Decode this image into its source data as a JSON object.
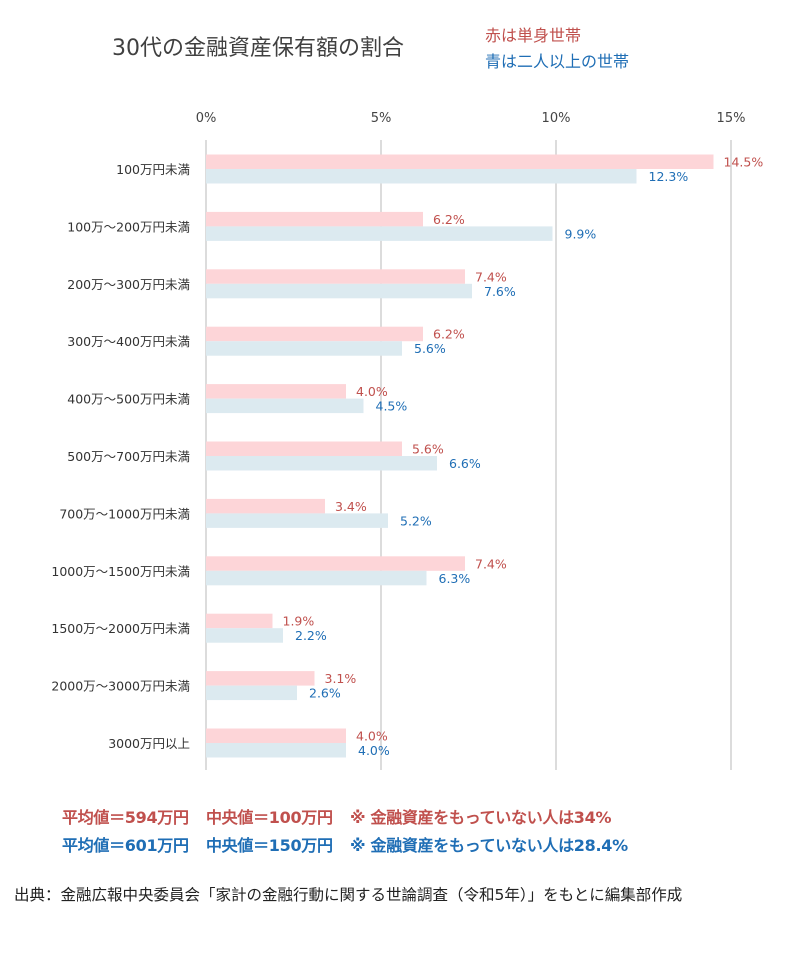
{
  "chart_data": {
    "type": "bar",
    "orientation": "horizontal",
    "title": "30代の金融資産保有額の割合",
    "legend": [
      {
        "text": "赤は単身世帯",
        "color": "#c0504d"
      },
      {
        "text": "青は二人以上の世帯",
        "color": "#1f6eb5"
      }
    ],
    "xlim": [
      0,
      15
    ],
    "xticks": [
      "0%",
      "5%",
      "10%",
      "15%"
    ],
    "xtick_values": [
      0,
      5,
      10,
      15
    ],
    "grid": true,
    "categories": [
      "100万円未満",
      "100万～200万円未満",
      "200万～300万円未満",
      "300万～400万円未満",
      "400万～500万円未満",
      "500万～700万円未満",
      "700万～1000万円未満",
      "1000万～1500万円未満",
      "1500万～2000万円未満",
      "2000万～3000万円未満",
      "3000万円以上"
    ],
    "series": [
      {
        "label_color": "#c0504d",
        "bar_color": "#fdd5d8",
        "values": [
          14.5,
          6.2,
          7.4,
          6.2,
          4.0,
          5.6,
          3.4,
          7.4,
          1.9,
          3.1,
          4.0
        ]
      },
      {
        "label_color": "#1f6eb5",
        "bar_color": "#dceaf0",
        "values": [
          12.3,
          9.9,
          7.6,
          5.6,
          4.5,
          6.6,
          5.2,
          6.3,
          2.2,
          2.6,
          4.0
        ]
      }
    ]
  },
  "notes": {
    "single": [
      "平均値＝594万円",
      "中央値＝100万円",
      "※ 金融資産をもっていない人は34%"
    ],
    "multi": [
      "平均値＝601万円",
      "中央値＝150万円",
      "※ 金融資産をもっていない人は28.4%"
    ]
  },
  "source": "出典：金融広報中央委員会「家計の金融行動に関する世論調査（令和5年）」をもとに編集部作成"
}
